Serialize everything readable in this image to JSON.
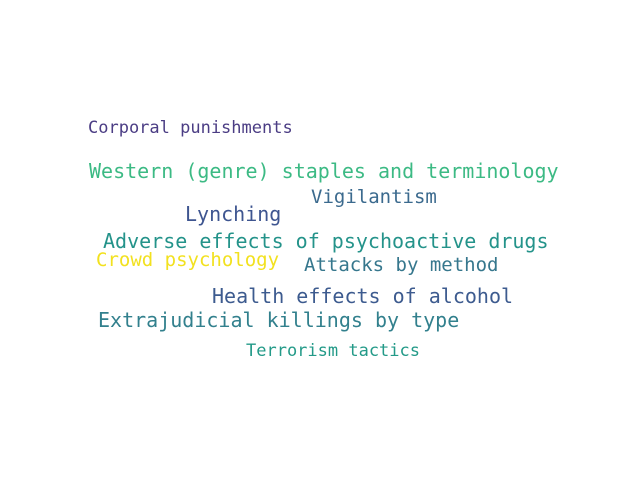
{
  "words": [
    {
      "text": "Corporal punishments",
      "color": "#4b3d84"
    },
    {
      "text": "Western (genre) staples and terminology",
      "color": "#3cba84"
    },
    {
      "text": "Vigilantism",
      "color": "#3b6a8e"
    },
    {
      "text": "Lynching",
      "color": "#3e5590"
    },
    {
      "text": "Adverse effects of psychoactive drugs",
      "color": "#24938a"
    },
    {
      "text": "Crowd psychology",
      "color": "#f2e11f"
    },
    {
      "text": "Attacks by method",
      "color": "#36778d"
    },
    {
      "text": "Health effects of alcohol",
      "color": "#3d5b8f"
    },
    {
      "text": "Extrajudicial killings by type",
      "color": "#32808d"
    },
    {
      "text": "Terrorism tactics",
      "color": "#239a88"
    }
  ]
}
